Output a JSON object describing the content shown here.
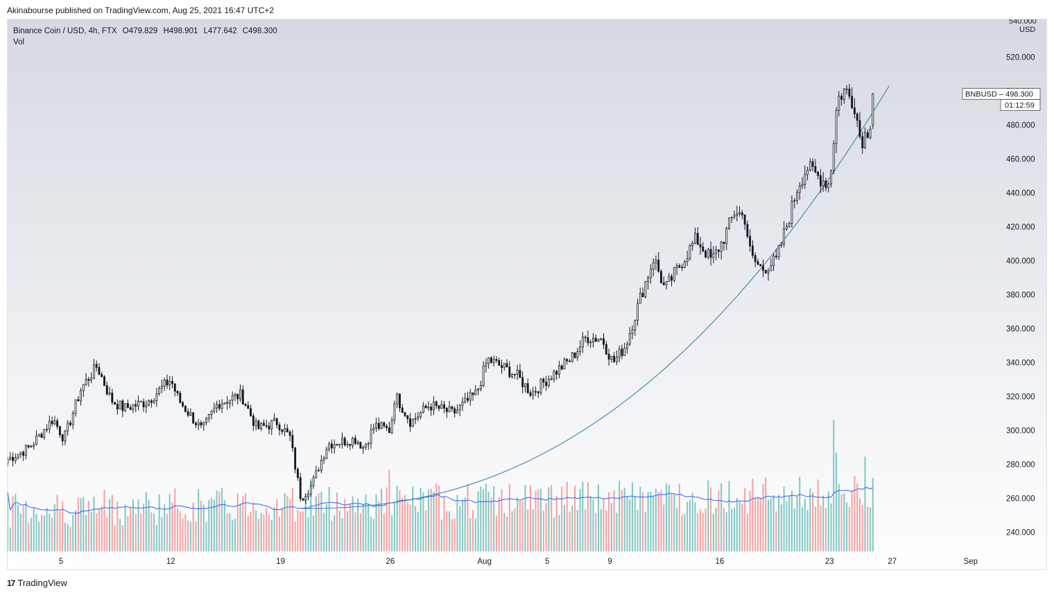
{
  "publish_line": "Akinabourse published on TradingView.com, Aug 25, 2021 16:47 UTC+2",
  "legend": {
    "title": "Binance Coin / USD, 4h, FTX",
    "open": "O479.829",
    "high": "H498.901",
    "low": "L477.642",
    "close": "C498.300",
    "vol_label": "Vol"
  },
  "axis": {
    "currency": "USD",
    "top_partial_label": "540.000"
  },
  "price_tag": {
    "symbol": "BNBUSD",
    "price": "498.300",
    "countdown": "01:12:59"
  },
  "footer": {
    "brand": "TradingView",
    "logo_glyph": "17"
  },
  "colors": {
    "up": "#131722",
    "down": "#131722",
    "vol_up": "#83c8c4",
    "vol_down": "#f5a3a3",
    "vol_ma": "#2962ff",
    "curve": "#4a8bb4"
  },
  "chart_data": {
    "type": "candlestick",
    "symbol": "BNBUSD",
    "interval": "4h",
    "exchange": "FTX",
    "y_range": [
      230,
      541
    ],
    "y_ticks": [
      240,
      260,
      280,
      300,
      320,
      340,
      360,
      380,
      400,
      420,
      440,
      460,
      480,
      500,
      520
    ],
    "y_tick_labels": [
      "240.000",
      "260.000",
      "280.000",
      "300.000",
      "320.000",
      "340.000",
      "360.000",
      "380.000",
      "400.000",
      "420.000",
      "440.000",
      "460.000",
      "480.000",
      "500.000",
      "520.000"
    ],
    "x_ticks": [
      {
        "label": "5",
        "day": 5
      },
      {
        "label": "12",
        "day": 12
      },
      {
        "label": "19",
        "day": 19
      },
      {
        "label": "26",
        "day": 26
      },
      {
        "label": "Aug",
        "day": 32
      },
      {
        "label": "5",
        "day": 36
      },
      {
        "label": "9",
        "day": 40
      },
      {
        "label": "16",
        "day": 47
      },
      {
        "label": "23",
        "day": 54
      },
      {
        "label": "27",
        "day": 58
      },
      {
        "label": "Sep",
        "day": 63
      }
    ],
    "day_range": [
      1.6,
      64.6
    ],
    "keypoints": [
      [
        1.6,
        283
      ],
      [
        3.0,
        290
      ],
      [
        4.5,
        307
      ],
      [
        5.2,
        295
      ],
      [
        6.3,
        325
      ],
      [
        7.3,
        338
      ],
      [
        8.2,
        318
      ],
      [
        9.0,
        313
      ],
      [
        10.5,
        317
      ],
      [
        12.0,
        330
      ],
      [
        12.5,
        318
      ],
      [
        14.0,
        300
      ],
      [
        15.0,
        316
      ],
      [
        16.5,
        321
      ],
      [
        17.5,
        301
      ],
      [
        18.8,
        305
      ],
      [
        19.6,
        296
      ],
      [
        20.3,
        260
      ],
      [
        21.0,
        268
      ],
      [
        22.0,
        292
      ],
      [
        23.8,
        295
      ],
      [
        24.3,
        290
      ],
      [
        25.0,
        303
      ],
      [
        26.0,
        300
      ],
      [
        26.3,
        321
      ],
      [
        27.3,
        305
      ],
      [
        28.5,
        315
      ],
      [
        30.0,
        310
      ],
      [
        31.5,
        322
      ],
      [
        32.2,
        342
      ],
      [
        33.0,
        338
      ],
      [
        34.0,
        333
      ],
      [
        35.0,
        322
      ],
      [
        36.2,
        332
      ],
      [
        37.5,
        342
      ],
      [
        38.5,
        355
      ],
      [
        39.5,
        354
      ],
      [
        40.2,
        340
      ],
      [
        41.0,
        350
      ],
      [
        42.0,
        380
      ],
      [
        42.8,
        402
      ],
      [
        43.5,
        383
      ],
      [
        44.5,
        398
      ],
      [
        45.5,
        413
      ],
      [
        46.5,
        400
      ],
      [
        47.2,
        412
      ],
      [
        48.0,
        430
      ],
      [
        48.6,
        425
      ],
      [
        49.0,
        402
      ],
      [
        49.7,
        395
      ],
      [
        50.6,
        400
      ],
      [
        51.5,
        428
      ],
      [
        52.0,
        445
      ],
      [
        52.6,
        455
      ],
      [
        53.5,
        448
      ],
      [
        54.0,
        445
      ],
      [
        54.5,
        495
      ],
      [
        55.0,
        501
      ],
      [
        55.6,
        492
      ],
      [
        56.0,
        470
      ],
      [
        56.5,
        478
      ],
      [
        56.8,
        490
      ]
    ],
    "last": {
      "open": 479.829,
      "high": 498.901,
      "low": 477.642,
      "close": 498.3
    },
    "volume_spikes": [
      {
        "day": 21.0,
        "height": 0.55
      },
      {
        "day": 25.9,
        "height": 0.62
      },
      {
        "day": 41.6,
        "height": 0.42
      },
      {
        "day": 54.2,
        "height": 1.0
      },
      {
        "day": 54.4,
        "height": 0.75
      },
      {
        "day": 56.2,
        "height": 0.72
      }
    ],
    "parabola": {
      "start": {
        "day": 20.3,
        "price": 254
      },
      "end": {
        "day": 57.8,
        "price": 503
      },
      "exponent": 2.3
    }
  }
}
